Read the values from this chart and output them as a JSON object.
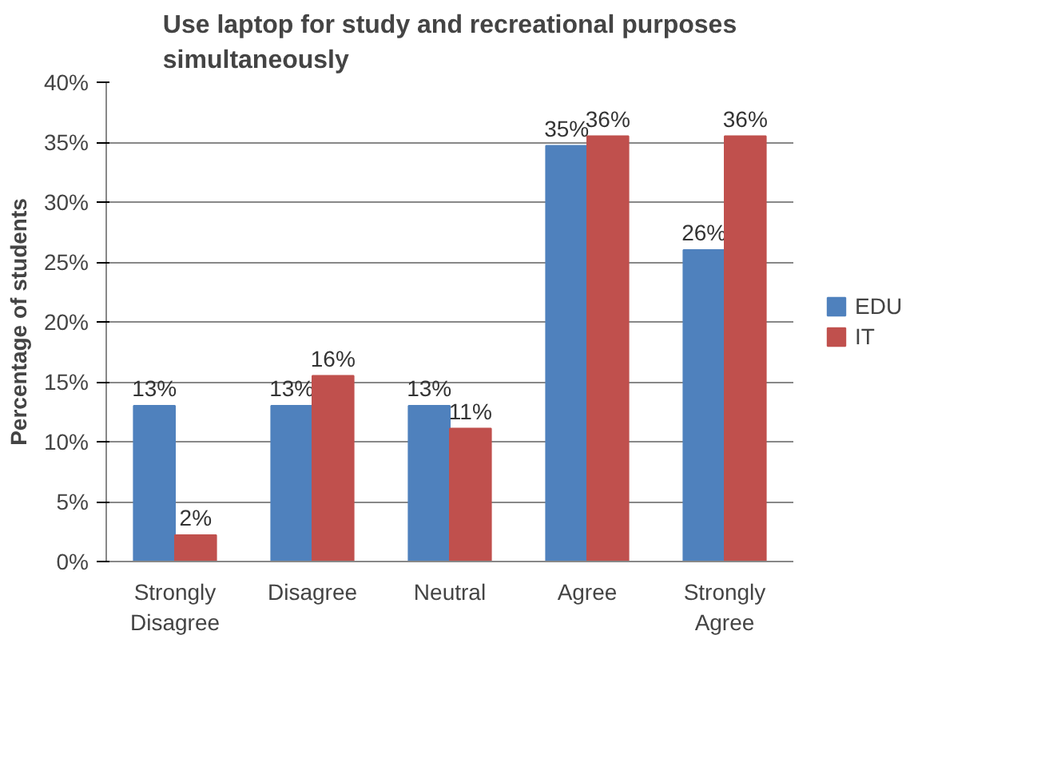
{
  "chart_data": {
    "type": "bar",
    "title": "Use laptop for study and recreational purposes simultaneously",
    "ylabel": "Percentage of students",
    "categories": [
      "Strongly Disagree",
      "Disagree",
      "Neutral",
      "Agree",
      "Strongly Agree"
    ],
    "series": [
      {
        "name": "EDU",
        "color": "#4f81bd",
        "values": [
          13,
          13,
          13,
          34.7,
          26
        ],
        "value_labels": [
          "13%",
          "13%",
          "13%",
          "35%",
          "26%"
        ]
      },
      {
        "name": "IT",
        "color": "#c0504d",
        "values": [
          2.2,
          15.5,
          11.1,
          35.5,
          35.5
        ],
        "value_labels": [
          "2%",
          "16%",
          "11%",
          "36%",
          "36%"
        ]
      }
    ],
    "ylim": [
      0,
      40
    ],
    "yticks": [
      {
        "value": 0,
        "label": "0%"
      },
      {
        "value": 5,
        "label": "5%"
      },
      {
        "value": 10,
        "label": "10%"
      },
      {
        "value": 15,
        "label": "15%"
      },
      {
        "value": 20,
        "label": "20%"
      },
      {
        "value": 25,
        "label": "25%"
      },
      {
        "value": 30,
        "label": "30%"
      },
      {
        "value": 35,
        "label": "35%"
      },
      {
        "value": 40,
        "label": "40%"
      }
    ],
    "grid": "y",
    "legend": "right"
  }
}
